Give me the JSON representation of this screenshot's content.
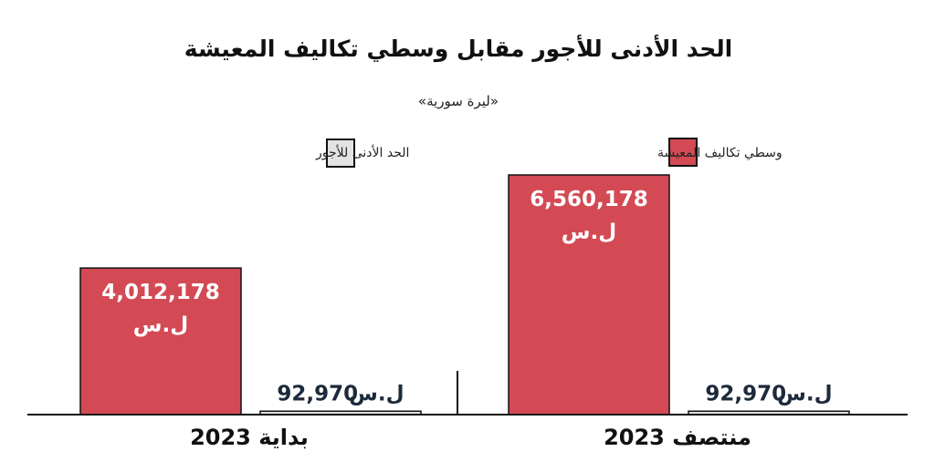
{
  "chart_data": {
    "type": "bar",
    "title": "الحد الأدنى للأجور مقابل وسطي تكاليف المعيشة",
    "subtitle": "«ليرة سورية»",
    "categories": [
      "بداية 2023",
      "منتصف 2023"
    ],
    "series": [
      {
        "name": "وسطي تكاليف المعيشة",
        "values": [
          4012178,
          6560178
        ],
        "labels": [
          "4,012,178",
          "6,560,178"
        ],
        "unit_label": "ل.س",
        "color": "#d34a55"
      },
      {
        "name": "الحد الأدنى للأجور",
        "values": [
          92970,
          92970
        ],
        "labels": [
          "92,970",
          "92,970"
        ],
        "unit_label": "ل.س",
        "color": "#e3e3e3"
      }
    ],
    "ylim": [
      0,
      6560178
    ],
    "grid": false,
    "legend_position": "top"
  }
}
